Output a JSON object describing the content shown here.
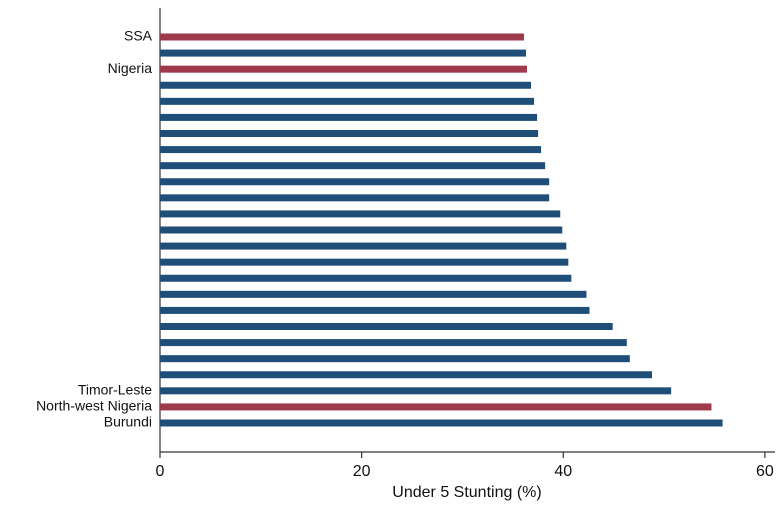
{
  "chart_data": {
    "type": "barh",
    "xlabel": "Under 5 Stunting (%)",
    "categories": [
      "SSA",
      null,
      "Nigeria",
      null,
      null,
      null,
      null,
      null,
      null,
      null,
      null,
      null,
      null,
      null,
      null,
      null,
      null,
      null,
      null,
      null,
      null,
      null,
      "Timor-Leste",
      "North-west Nigeria",
      "Burundi"
    ],
    "values": [
      36.1,
      36.3,
      36.4,
      36.8,
      37.1,
      37.4,
      37.5,
      37.8,
      38.2,
      38.6,
      38.6,
      39.7,
      39.9,
      40.3,
      40.5,
      40.8,
      42.3,
      42.6,
      44.9,
      46.3,
      46.6,
      48.8,
      50.7,
      54.7,
      55.8
    ],
    "colors": [
      "#9e3a4c",
      "#1f4e79",
      "#9e3a4c",
      "#1f4e79",
      "#1f4e79",
      "#1f4e79",
      "#1f4e79",
      "#1f4e79",
      "#1f4e79",
      "#1f4e79",
      "#1f4e79",
      "#1f4e79",
      "#1f4e79",
      "#1f4e79",
      "#1f4e79",
      "#1f4e79",
      "#1f4e79",
      "#1f4e79",
      "#1f4e79",
      "#1f4e79",
      "#1f4e79",
      "#1f4e79",
      "#1f4e79",
      "#9e3a4c",
      "#1f4e79"
    ],
    "xlim": [
      0,
      61
    ],
    "xticks": [
      0,
      20,
      40,
      60
    ]
  }
}
